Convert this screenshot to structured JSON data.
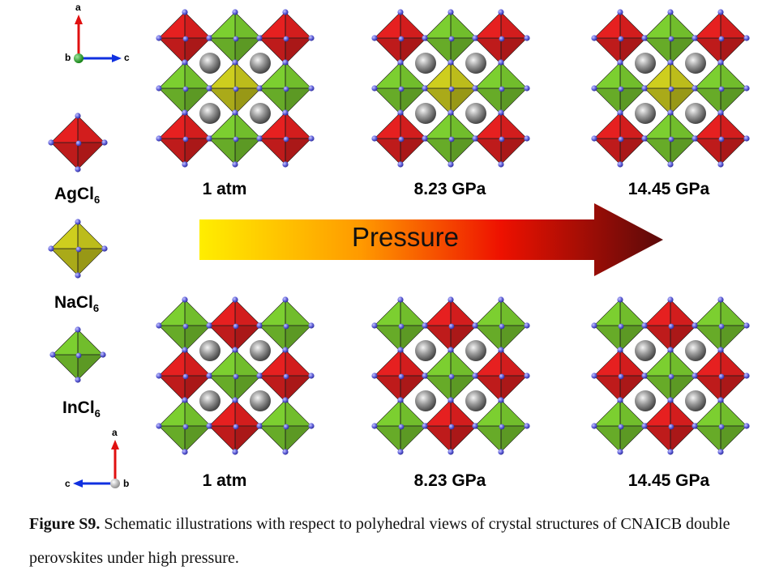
{
  "colors": {
    "agcl6": "#c81c1c",
    "nacl6": "#b3b31a",
    "incl6": "#6cb42a",
    "chlorine": "#5a5ad6",
    "cesium": "#8a8a8a",
    "axis_a": "#e01010",
    "axis_c": "#1030e0",
    "axis_b_top": "#10a010",
    "axis_b_bottom": "#c8c8c8"
  },
  "axes_top": {
    "a": "a",
    "b": "b",
    "c": "c"
  },
  "axes_bottom": {
    "a": "a",
    "b": "b",
    "c": "c"
  },
  "legend": [
    {
      "base": "AgCl",
      "sub": "6",
      "color": "agcl6"
    },
    {
      "base": "NaCl",
      "sub": "6",
      "color": "nacl6"
    },
    {
      "base": "InCl",
      "sub": "6",
      "color": "incl6"
    }
  ],
  "top_row": {
    "labels": [
      "1 atm",
      "8.23 GPa",
      "14.45 GPa"
    ]
  },
  "bottom_row": {
    "labels": [
      "1 atm",
      "8.23 GPa",
      "14.45 GPa"
    ]
  },
  "arrow": {
    "label": "Pressure",
    "gradient": [
      "#ffee00",
      "#ff9900",
      "#ee1100",
      "#5a0a0a"
    ]
  },
  "caption": {
    "prefix": "Figure S9.",
    "text": " Schematic illustrations with respect to polyhedral views of crystal structures of CNAICB double perovskites under high pressure."
  }
}
